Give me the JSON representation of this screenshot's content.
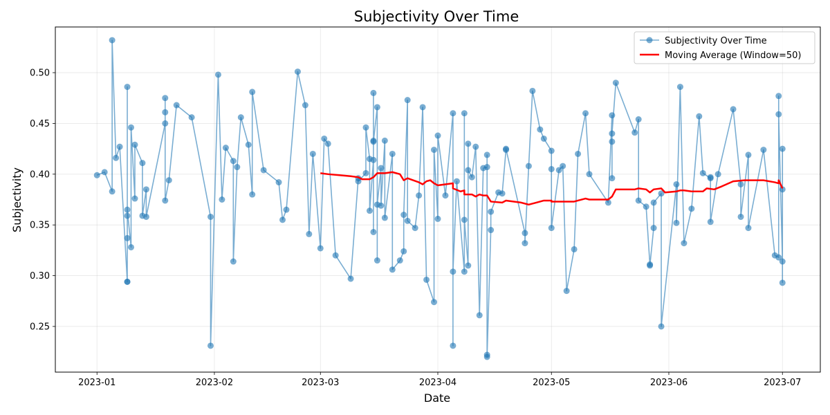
{
  "chart_data": {
    "type": "line",
    "title": "Subjectivity Over Time",
    "xlabel": "Date",
    "ylabel": "Subjectivity",
    "x_tick_labels": [
      "2023-01",
      "2023-02",
      "2023-03",
      "2023-04",
      "2023-05",
      "2023-06",
      "2023-07"
    ],
    "x_ticks": [
      "2023-01-01",
      "2023-02-01",
      "2023-03-01",
      "2023-04-01",
      "2023-05-01",
      "2023-06-01",
      "2023-07-01"
    ],
    "xlim": [
      "2022-12-21",
      "2023-07-11"
    ],
    "y_ticks": [
      0.25,
      0.3,
      0.35,
      0.4,
      0.45,
      0.5
    ],
    "y_tick_labels": [
      "0.25",
      "0.30",
      "0.35",
      "0.40",
      "0.45",
      "0.50"
    ],
    "ylim": [
      0.205,
      0.545
    ],
    "grid": true,
    "legend_position": "top-right",
    "series": [
      {
        "name": "Subjectivity Over Time",
        "color": "#1f77b4",
        "style": "line-with-circle-markers",
        "points": [
          [
            "2023-01-01",
            0.399
          ],
          [
            "2023-01-03",
            0.402
          ],
          [
            "2023-01-05",
            0.383
          ],
          [
            "2023-01-05",
            0.532
          ],
          [
            "2023-01-06",
            0.416
          ],
          [
            "2023-01-07",
            0.427
          ],
          [
            "2023-01-09",
            0.294
          ],
          [
            "2023-01-09",
            0.294
          ],
          [
            "2023-01-09",
            0.359
          ],
          [
            "2023-01-09",
            0.337
          ],
          [
            "2023-01-09",
            0.486
          ],
          [
            "2023-01-09",
            0.365
          ],
          [
            "2023-01-10",
            0.328
          ],
          [
            "2023-01-10",
            0.446
          ],
          [
            "2023-01-11",
            0.376
          ],
          [
            "2023-01-11",
            0.429
          ],
          [
            "2023-01-13",
            0.411
          ],
          [
            "2023-01-13",
            0.359
          ],
          [
            "2023-01-14",
            0.385
          ],
          [
            "2023-01-14",
            0.358
          ],
          [
            "2023-01-19",
            0.45
          ],
          [
            "2023-01-19",
            0.475
          ],
          [
            "2023-01-19",
            0.461
          ],
          [
            "2023-01-19",
            0.374
          ],
          [
            "2023-01-20",
            0.394
          ],
          [
            "2023-01-22",
            0.468
          ],
          [
            "2023-01-26",
            0.456
          ],
          [
            "2023-01-31",
            0.358
          ],
          [
            "2023-01-31",
            0.231
          ],
          [
            "2023-02-02",
            0.498
          ],
          [
            "2023-02-03",
            0.375
          ],
          [
            "2023-02-04",
            0.426
          ],
          [
            "2023-02-06",
            0.413
          ],
          [
            "2023-02-06",
            0.314
          ],
          [
            "2023-02-07",
            0.407
          ],
          [
            "2023-02-08",
            0.456
          ],
          [
            "2023-02-10",
            0.429
          ],
          [
            "2023-02-11",
            0.38
          ],
          [
            "2023-02-11",
            0.481
          ],
          [
            "2023-02-14",
            0.404
          ],
          [
            "2023-02-18",
            0.392
          ],
          [
            "2023-02-19",
            0.355
          ],
          [
            "2023-02-20",
            0.365
          ],
          [
            "2023-02-23",
            0.501
          ],
          [
            "2023-02-25",
            0.468
          ],
          [
            "2023-02-26",
            0.341
          ],
          [
            "2023-02-27",
            0.42
          ],
          [
            "2023-03-01",
            0.327
          ],
          [
            "2023-03-02",
            0.435
          ],
          [
            "2023-03-03",
            0.43
          ],
          [
            "2023-03-05",
            0.32
          ],
          [
            "2023-03-09",
            0.297
          ],
          [
            "2023-03-11",
            0.396
          ],
          [
            "2023-03-11",
            0.393
          ],
          [
            "2023-03-13",
            0.401
          ],
          [
            "2023-03-13",
            0.446
          ],
          [
            "2023-03-14",
            0.415
          ],
          [
            "2023-03-14",
            0.364
          ],
          [
            "2023-03-15",
            0.414
          ],
          [
            "2023-03-15",
            0.343
          ],
          [
            "2023-03-15",
            0.48
          ],
          [
            "2023-03-15",
            0.433
          ],
          [
            "2023-03-15",
            0.432
          ],
          [
            "2023-03-16",
            0.466
          ],
          [
            "2023-03-16",
            0.315
          ],
          [
            "2023-03-16",
            0.37
          ],
          [
            "2023-03-17",
            0.406
          ],
          [
            "2023-03-17",
            0.369
          ],
          [
            "2023-03-18",
            0.433
          ],
          [
            "2023-03-18",
            0.357
          ],
          [
            "2023-03-20",
            0.42
          ],
          [
            "2023-03-20",
            0.306
          ],
          [
            "2023-03-22",
            0.315
          ],
          [
            "2023-03-23",
            0.324
          ],
          [
            "2023-03-23",
            0.36
          ],
          [
            "2023-03-24",
            0.473
          ],
          [
            "2023-03-24",
            0.354
          ],
          [
            "2023-03-26",
            0.347
          ],
          [
            "2023-03-27",
            0.379
          ],
          [
            "2023-03-28",
            0.466
          ],
          [
            "2023-03-29",
            0.296
          ],
          [
            "2023-03-31",
            0.274
          ],
          [
            "2023-03-31",
            0.424
          ],
          [
            "2023-04-01",
            0.356
          ],
          [
            "2023-04-01",
            0.438
          ],
          [
            "2023-04-03",
            0.379
          ],
          [
            "2023-04-05",
            0.46
          ],
          [
            "2023-04-05",
            0.231
          ],
          [
            "2023-04-05",
            0.304
          ],
          [
            "2023-04-06",
            0.393
          ],
          [
            "2023-04-08",
            0.304
          ],
          [
            "2023-04-08",
            0.46
          ],
          [
            "2023-04-08",
            0.355
          ],
          [
            "2023-04-09",
            0.31
          ],
          [
            "2023-04-09",
            0.43
          ],
          [
            "2023-04-09",
            0.404
          ],
          [
            "2023-04-10",
            0.397
          ],
          [
            "2023-04-11",
            0.427
          ],
          [
            "2023-04-12",
            0.261
          ],
          [
            "2023-04-13",
            0.406
          ],
          [
            "2023-04-14",
            0.407
          ],
          [
            "2023-04-14",
            0.419
          ],
          [
            "2023-04-14",
            0.222
          ],
          [
            "2023-04-14",
            0.22
          ],
          [
            "2023-04-15",
            0.345
          ],
          [
            "2023-04-15",
            0.363
          ],
          [
            "2023-04-17",
            0.382
          ],
          [
            "2023-04-18",
            0.381
          ],
          [
            "2023-04-19",
            0.424
          ],
          [
            "2023-04-19",
            0.425
          ],
          [
            "2023-04-24",
            0.342
          ],
          [
            "2023-04-24",
            0.332
          ],
          [
            "2023-04-25",
            0.408
          ],
          [
            "2023-04-26",
            0.482
          ],
          [
            "2023-04-28",
            0.444
          ],
          [
            "2023-04-29",
            0.435
          ],
          [
            "2023-05-01",
            0.423
          ],
          [
            "2023-05-01",
            0.405
          ],
          [
            "2023-05-01",
            0.347
          ],
          [
            "2023-05-03",
            0.404
          ],
          [
            "2023-05-04",
            0.408
          ],
          [
            "2023-05-05",
            0.285
          ],
          [
            "2023-05-07",
            0.326
          ],
          [
            "2023-05-08",
            0.42
          ],
          [
            "2023-05-10",
            0.46
          ],
          [
            "2023-05-11",
            0.4
          ],
          [
            "2023-05-16",
            0.372
          ],
          [
            "2023-05-17",
            0.458
          ],
          [
            "2023-05-17",
            0.396
          ],
          [
            "2023-05-17",
            0.432
          ],
          [
            "2023-05-17",
            0.44
          ],
          [
            "2023-05-18",
            0.49
          ],
          [
            "2023-05-23",
            0.441
          ],
          [
            "2023-05-24",
            0.454
          ],
          [
            "2023-05-24",
            0.374
          ],
          [
            "2023-05-26",
            0.368
          ],
          [
            "2023-05-27",
            0.311
          ],
          [
            "2023-05-27",
            0.31
          ],
          [
            "2023-05-28",
            0.347
          ],
          [
            "2023-05-28",
            0.372
          ],
          [
            "2023-05-30",
            0.381
          ],
          [
            "2023-05-30",
            0.25
          ],
          [
            "2023-06-03",
            0.39
          ],
          [
            "2023-06-03",
            0.352
          ],
          [
            "2023-06-04",
            0.486
          ],
          [
            "2023-06-05",
            0.332
          ],
          [
            "2023-06-07",
            0.366
          ],
          [
            "2023-06-09",
            0.457
          ],
          [
            "2023-06-10",
            0.401
          ],
          [
            "2023-06-12",
            0.396
          ],
          [
            "2023-06-12",
            0.397
          ],
          [
            "2023-06-12",
            0.353
          ],
          [
            "2023-06-14",
            0.4
          ],
          [
            "2023-06-18",
            0.464
          ],
          [
            "2023-06-20",
            0.39
          ],
          [
            "2023-06-20",
            0.358
          ],
          [
            "2023-06-22",
            0.419
          ],
          [
            "2023-06-22",
            0.347
          ],
          [
            "2023-06-26",
            0.424
          ],
          [
            "2023-06-29",
            0.32
          ],
          [
            "2023-06-30",
            0.318
          ],
          [
            "2023-06-30",
            0.477
          ],
          [
            "2023-06-30",
            0.459
          ],
          [
            "2023-07-01",
            0.314
          ],
          [
            "2023-07-01",
            0.385
          ],
          [
            "2023-07-01",
            0.425
          ],
          [
            "2023-07-01",
            0.293
          ]
        ]
      },
      {
        "name": "Moving Average (Window=50)",
        "color": "#ff0000",
        "style": "line",
        "points": [
          [
            "2023-03-01",
            0.401
          ],
          [
            "2023-03-03",
            0.4
          ],
          [
            "2023-03-06",
            0.399
          ],
          [
            "2023-03-09",
            0.398
          ],
          [
            "2023-03-11",
            0.397
          ],
          [
            "2023-03-12",
            0.395
          ],
          [
            "2023-03-14",
            0.395
          ],
          [
            "2023-03-15",
            0.397
          ],
          [
            "2023-03-16",
            0.401
          ],
          [
            "2023-03-18",
            0.401
          ],
          [
            "2023-03-20",
            0.402
          ],
          [
            "2023-03-22",
            0.4
          ],
          [
            "2023-03-23",
            0.394
          ],
          [
            "2023-03-24",
            0.396
          ],
          [
            "2023-03-27",
            0.392
          ],
          [
            "2023-03-28",
            0.39
          ],
          [
            "2023-03-29",
            0.393
          ],
          [
            "2023-03-30",
            0.394
          ],
          [
            "2023-03-31",
            0.391
          ],
          [
            "2023-04-01",
            0.389
          ],
          [
            "2023-04-03",
            0.39
          ],
          [
            "2023-04-05",
            0.391
          ],
          [
            "2023-04-05",
            0.386
          ],
          [
            "2023-04-07",
            0.383
          ],
          [
            "2023-04-08",
            0.384
          ],
          [
            "2023-04-08",
            0.38
          ],
          [
            "2023-04-10",
            0.38
          ],
          [
            "2023-04-11",
            0.378
          ],
          [
            "2023-04-12",
            0.38
          ],
          [
            "2023-04-13",
            0.379
          ],
          [
            "2023-04-14",
            0.379
          ],
          [
            "2023-04-15",
            0.373
          ],
          [
            "2023-04-18",
            0.372
          ],
          [
            "2023-04-19",
            0.374
          ],
          [
            "2023-04-23",
            0.372
          ],
          [
            "2023-04-25",
            0.37
          ],
          [
            "2023-04-27",
            0.372
          ],
          [
            "2023-04-29",
            0.374
          ],
          [
            "2023-05-01",
            0.374
          ],
          [
            "2023-05-01",
            0.373
          ],
          [
            "2023-05-04",
            0.373
          ],
          [
            "2023-05-07",
            0.373
          ],
          [
            "2023-05-08",
            0.374
          ],
          [
            "2023-05-10",
            0.376
          ],
          [
            "2023-05-11",
            0.375
          ],
          [
            "2023-05-16",
            0.375
          ],
          [
            "2023-05-17",
            0.378
          ],
          [
            "2023-05-18",
            0.385
          ],
          [
            "2023-05-23",
            0.385
          ],
          [
            "2023-05-24",
            0.386
          ],
          [
            "2023-05-26",
            0.385
          ],
          [
            "2023-05-27",
            0.382
          ],
          [
            "2023-05-28",
            0.385
          ],
          [
            "2023-05-30",
            0.386
          ],
          [
            "2023-05-31",
            0.382
          ],
          [
            "2023-06-03",
            0.383
          ],
          [
            "2023-06-04",
            0.384
          ],
          [
            "2023-06-05",
            0.384
          ],
          [
            "2023-06-07",
            0.383
          ],
          [
            "2023-06-10",
            0.383
          ],
          [
            "2023-06-11",
            0.386
          ],
          [
            "2023-06-13",
            0.385
          ],
          [
            "2023-06-15",
            0.388
          ],
          [
            "2023-06-18",
            0.393
          ],
          [
            "2023-06-21",
            0.394
          ],
          [
            "2023-06-22",
            0.394
          ],
          [
            "2023-06-26",
            0.394
          ],
          [
            "2023-06-29",
            0.392
          ],
          [
            "2023-06-30",
            0.391
          ],
          [
            "2023-06-30",
            0.394
          ],
          [
            "2023-07-01",
            0.386
          ]
        ]
      }
    ]
  }
}
